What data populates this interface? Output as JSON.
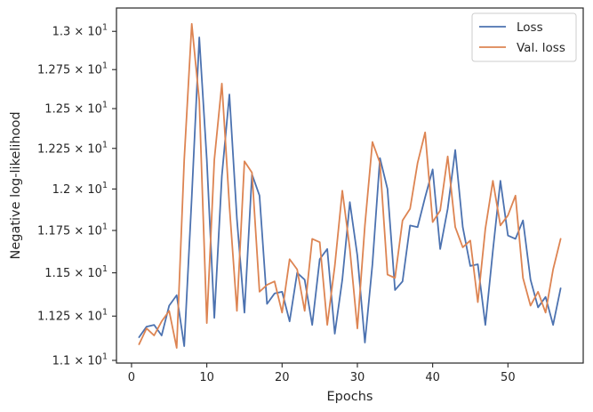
{
  "chart_data": {
    "type": "line",
    "xlabel": "Epochs",
    "ylabel": "Negative log-likelihood",
    "xlim": [
      -2,
      60
    ],
    "ylim": [
      10.985,
      13.155
    ],
    "y_scale": "log",
    "grid": false,
    "legend_position": "top-right",
    "x_ticks": [
      0,
      10,
      20,
      30,
      40,
      50
    ],
    "x_tick_labels": [
      "0",
      "10",
      "20",
      "30",
      "40",
      "50"
    ],
    "y_ticks": [
      11.0,
      11.25,
      11.5,
      11.75,
      12.0,
      12.25,
      12.5,
      12.75,
      13.0
    ],
    "y_tick_labels": [
      {
        "mantissa": "1.1",
        "exp": "1"
      },
      {
        "mantissa": "1.125",
        "exp": "1"
      },
      {
        "mantissa": "1.15",
        "exp": "1"
      },
      {
        "mantissa": "1.175",
        "exp": "1"
      },
      {
        "mantissa": "1.2",
        "exp": "1"
      },
      {
        "mantissa": "1.225",
        "exp": "1"
      },
      {
        "mantissa": "1.25",
        "exp": "1"
      },
      {
        "mantissa": "1.275",
        "exp": "1"
      },
      {
        "mantissa": "1.3",
        "exp": "1"
      }
    ],
    "x": [
      1,
      2,
      3,
      4,
      5,
      6,
      7,
      8,
      9,
      10,
      11,
      12,
      13,
      14,
      15,
      16,
      17,
      18,
      19,
      20,
      21,
      22,
      23,
      24,
      25,
      26,
      27,
      28,
      29,
      30,
      31,
      32,
      33,
      34,
      35,
      36,
      37,
      38,
      39,
      40,
      41,
      42,
      43,
      44,
      45,
      46,
      47,
      48,
      49,
      50,
      51,
      52,
      53,
      54,
      55,
      56,
      57
    ],
    "series": [
      {
        "name": "Loss",
        "color": "#4c72b0",
        "values": [
          11.13,
          11.19,
          11.2,
          11.14,
          11.31,
          11.37,
          11.08,
          11.95,
          12.96,
          12.18,
          11.24,
          12.08,
          12.59,
          11.82,
          11.27,
          12.09,
          11.96,
          11.32,
          11.38,
          11.39,
          11.22,
          11.5,
          11.46,
          11.2,
          11.58,
          11.64,
          11.15,
          11.46,
          11.92,
          11.6,
          11.1,
          11.55,
          12.19,
          12.0,
          11.4,
          11.45,
          11.78,
          11.77,
          11.95,
          12.12,
          11.64,
          11.88,
          12.24,
          11.77,
          11.54,
          11.55,
          11.2,
          11.63,
          12.05,
          11.72,
          11.7,
          11.81,
          11.46,
          11.3,
          11.36,
          11.2,
          11.41
        ]
      },
      {
        "name": "Val. loss",
        "color": "#dd8452",
        "values": [
          11.09,
          11.18,
          11.14,
          11.22,
          11.28,
          11.07,
          12.18,
          13.05,
          12.55,
          11.21,
          12.18,
          12.66,
          11.9,
          11.28,
          12.17,
          12.1,
          11.39,
          11.43,
          11.45,
          11.27,
          11.58,
          11.52,
          11.28,
          11.7,
          11.68,
          11.2,
          11.54,
          11.99,
          11.64,
          11.18,
          11.78,
          12.29,
          12.16,
          11.49,
          11.47,
          11.81,
          11.88,
          12.16,
          12.35,
          11.8,
          11.87,
          12.2,
          11.77,
          11.65,
          11.69,
          11.33,
          11.76,
          12.05,
          11.78,
          11.84,
          11.96,
          11.47,
          11.31,
          11.39,
          11.27,
          11.52,
          11.7
        ]
      }
    ]
  }
}
